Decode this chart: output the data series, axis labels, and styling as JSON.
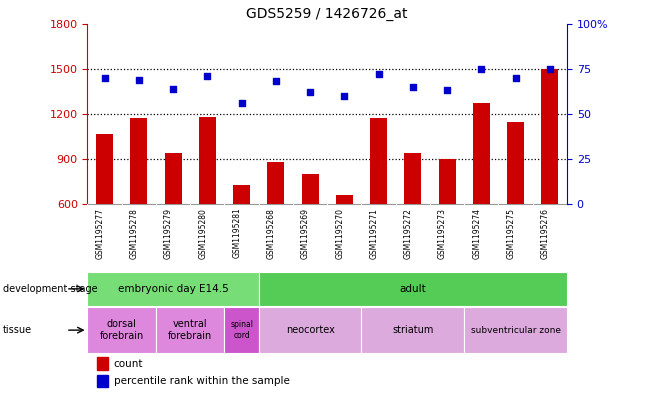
{
  "title": "GDS5259 / 1426726_at",
  "samples": [
    "GSM1195277",
    "GSM1195278",
    "GSM1195279",
    "GSM1195280",
    "GSM1195281",
    "GSM1195268",
    "GSM1195269",
    "GSM1195270",
    "GSM1195271",
    "GSM1195272",
    "GSM1195273",
    "GSM1195274",
    "GSM1195275",
    "GSM1195276"
  ],
  "counts": [
    1070,
    1170,
    940,
    1180,
    730,
    880,
    800,
    660,
    1170,
    940,
    900,
    1270,
    1150,
    1500
  ],
  "percentiles": [
    70,
    69,
    64,
    71,
    56,
    68,
    62,
    60,
    72,
    65,
    63,
    75,
    70,
    75
  ],
  "ylim_left": [
    600,
    1800
  ],
  "ylim_right": [
    0,
    100
  ],
  "yticks_left": [
    600,
    900,
    1200,
    1500,
    1800
  ],
  "yticks_right": [
    0,
    25,
    50,
    75,
    100
  ],
  "bar_color": "#cc0000",
  "dot_color": "#0000cc",
  "background_color": "#ffffff",
  "dotted_lines": [
    900,
    1200,
    1500
  ],
  "development_stage_groups": [
    {
      "label": "embryonic day E14.5",
      "start": 0,
      "end": 5,
      "color": "#77dd77"
    },
    {
      "label": "adult",
      "start": 5,
      "end": 14,
      "color": "#55cc55"
    }
  ],
  "tissue_groups": [
    {
      "label": "dorsal\nforebrain",
      "start": 0,
      "end": 2,
      "color": "#dd88dd",
      "fontsize": 7
    },
    {
      "label": "ventral\nforebrain",
      "start": 2,
      "end": 4,
      "color": "#dd88dd",
      "fontsize": 7
    },
    {
      "label": "spinal\ncord",
      "start": 4,
      "end": 5,
      "color": "#cc55cc",
      "fontsize": 5.5
    },
    {
      "label": "neocortex",
      "start": 5,
      "end": 8,
      "color": "#ddaadd",
      "fontsize": 7
    },
    {
      "label": "striatum",
      "start": 8,
      "end": 11,
      "color": "#ddaadd",
      "fontsize": 7
    },
    {
      "label": "subventricular zone",
      "start": 11,
      "end": 14,
      "color": "#ddaadd",
      "fontsize": 6.5
    }
  ],
  "label_area_color": "#cccccc",
  "dev_label": "development stage",
  "tissue_label": "tissue"
}
